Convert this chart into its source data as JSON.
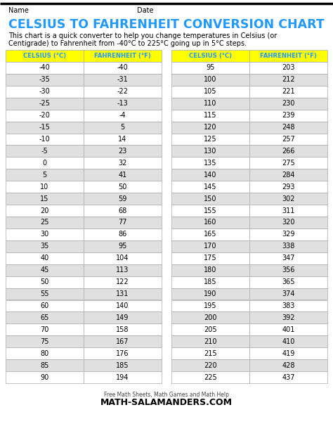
{
  "title": "CELSIUS TO FAHRENHEIT CONVERSION CHART",
  "subtitle_line1": "This chart is a quick converter to help you change temperatures in Celsius (or",
  "subtitle_line2": "Centigrade) to Fahrenheit from -40°C to 225°C going up in 5°C steps.",
  "name_label": "Name",
  "date_label": "Date",
  "col_headers": [
    "CELSIUS (°C)",
    "FAHRENHEIT (°F)"
  ],
  "left_celsius": [
    -40,
    -35,
    -30,
    -25,
    -20,
    -15,
    -10,
    -5,
    0,
    5,
    10,
    15,
    20,
    25,
    30,
    35,
    40,
    45,
    50,
    55,
    60,
    65,
    70,
    75,
    80,
    85,
    90
  ],
  "left_fahrenheit": [
    -40,
    -31,
    -22,
    -13,
    -4,
    5,
    14,
    23,
    32,
    41,
    50,
    59,
    68,
    77,
    86,
    95,
    104,
    113,
    122,
    131,
    140,
    149,
    158,
    167,
    176,
    185,
    194
  ],
  "right_celsius": [
    95,
    100,
    105,
    110,
    115,
    120,
    125,
    130,
    135,
    140,
    145,
    150,
    155,
    160,
    165,
    170,
    175,
    180,
    185,
    190,
    195,
    200,
    205,
    210,
    215,
    220,
    225
  ],
  "right_fahrenheit": [
    203,
    212,
    221,
    230,
    239,
    248,
    257,
    266,
    275,
    284,
    293,
    302,
    311,
    320,
    329,
    338,
    347,
    356,
    365,
    374,
    383,
    392,
    401,
    410,
    419,
    428,
    437
  ],
  "header_bg": "#FFFF00",
  "header_text_color": "#2299FF",
  "row_bg_even": "#FFFFFF",
  "row_bg_odd": "#E0E0E0",
  "border_color": "#AAAAAA",
  "title_color": "#2299FF",
  "body_text_color": "#000000",
  "bg_color": "#FFFFFF",
  "footer_small": "Free Math Sheets, Math Games and Math Help",
  "footer_large": "MATH-SALAMANDERS.COM"
}
